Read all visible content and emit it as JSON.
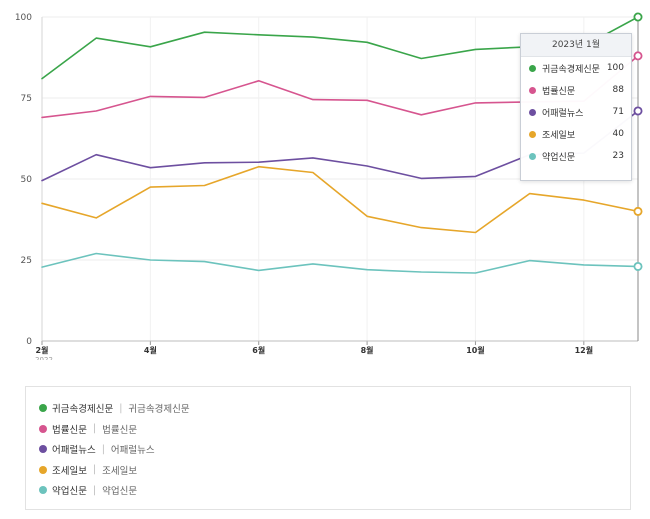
{
  "chart_data": {
    "type": "line",
    "ylim": [
      0,
      100
    ],
    "y_ticks": [
      "0",
      "25",
      "50",
      "75",
      "100"
    ],
    "x_tick_labels": [
      "2월",
      "4월",
      "6월",
      "8월",
      "10월",
      "12월"
    ],
    "x_sub_label": "2022",
    "series": [
      {
        "name": "귀금속경제신문",
        "color": "#3aa54a",
        "values": [
          81,
          93.5,
          90.8,
          95.3,
          94.5,
          93.8,
          92.2,
          87.2,
          90,
          90.8,
          91,
          100
        ]
      },
      {
        "name": "법률신문",
        "color": "#d6558f",
        "values": [
          69,
          71,
          75.5,
          75.2,
          80.3,
          74.5,
          74.3,
          69.8,
          73.5,
          73.8,
          74,
          88
        ]
      },
      {
        "name": "어패럴뉴스",
        "color": "#6d4fa0",
        "values": [
          49.5,
          57.5,
          53.5,
          55,
          55.2,
          56.5,
          54,
          50.2,
          50.8,
          57.5,
          58,
          71
        ]
      },
      {
        "name": "조세일보",
        "color": "#e6a62a",
        "values": [
          42.5,
          38,
          47.5,
          48,
          53.8,
          52,
          38.5,
          35,
          33.5,
          45.5,
          43.5,
          40
        ]
      },
      {
        "name": "약업신문",
        "color": "#6cc3bd",
        "values": [
          22.8,
          27,
          25,
          24.5,
          21.8,
          23.8,
          22,
          21.3,
          21,
          24.8,
          23.5,
          23
        ]
      }
    ]
  },
  "tooltip": {
    "title": "2023년 1월",
    "rows": [
      {
        "name": "귀금속경제신문",
        "value": "100",
        "color": "#3aa54a"
      },
      {
        "name": "법률신문",
        "value": "88",
        "color": "#d6558f"
      },
      {
        "name": "어패럴뉴스",
        "value": "71",
        "color": "#6d4fa0"
      },
      {
        "name": "조세일보",
        "value": "40",
        "color": "#e6a62a"
      },
      {
        "name": "약업신문",
        "value": "23",
        "color": "#6cc3bd"
      }
    ]
  },
  "legend": {
    "items": [
      {
        "name": "귀금속경제신문",
        "desc": "귀금속경제신문",
        "color": "#3aa54a"
      },
      {
        "name": "법률신문",
        "desc": "법률신문",
        "color": "#d6558f"
      },
      {
        "name": "어패럴뉴스",
        "desc": "어패럴뉴스",
        "color": "#6d4fa0"
      },
      {
        "name": "조세일보",
        "desc": "조세일보",
        "color": "#e6a62a"
      },
      {
        "name": "약업신문",
        "desc": "약업신문",
        "color": "#6cc3bd"
      }
    ]
  }
}
